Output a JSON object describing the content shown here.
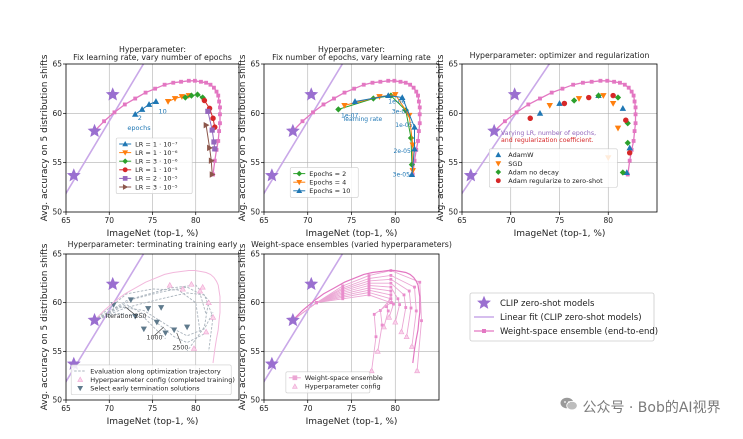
{
  "figure": {
    "ylabel": "Avg. accuracy on 5 distribution shifts",
    "xlabel": "ImageNet (top-1, %)",
    "watermark": "公众号 · Bob的AI视界"
  },
  "colors": {
    "clip": "#9a6fd0",
    "line": "#c9a8e8",
    "ensemble": "#e377c2",
    "blue": "#1f77b4",
    "orange": "#ff7f0e",
    "green": "#2ca02c",
    "red": "#d62728",
    "purple": "#9467bd",
    "brown": "#8c564b",
    "slate": "#5f7a8c",
    "grid": "#b0b0b0"
  },
  "chart_data": [
    {
      "id": "p1",
      "type": "line",
      "title": "Hyperparameter:\nFix learning rate, vary number of epochs",
      "xlim": [
        65,
        85
      ],
      "ylim": [
        50,
        65
      ],
      "xticks": [
        65,
        70,
        75,
        80
      ],
      "yticks": [
        50,
        55,
        60,
        65
      ],
      "annotations": [
        "2",
        "epochs",
        "10"
      ],
      "legend": [
        "LR = 1 · 10⁻⁷",
        "LR = 1 · 10⁻⁶",
        "LR = 3 · 10⁻⁶",
        "LR = 1 · 10⁻⁵",
        "LR = 2 · 10⁻⁵",
        "LR = 3 · 10⁻⁵"
      ],
      "series": [
        {
          "name": "LR = 1 · 10⁻⁷",
          "color": "blue",
          "marker": "triangle",
          "x": [
            73.0,
            73.8,
            74.6,
            75.4
          ],
          "y": [
            59.9,
            60.4,
            60.9,
            61.2
          ]
        },
        {
          "name": "LR = 1 · 10⁻⁶",
          "color": "orange",
          "marker": "tri-down",
          "x": [
            76.8,
            77.6,
            78.4,
            79.2
          ],
          "y": [
            61.2,
            61.5,
            61.7,
            61.8
          ]
        },
        {
          "name": "LR = 3 · 10⁻⁶",
          "color": "green",
          "marker": "diamond",
          "x": [
            78.8,
            79.5,
            80.2,
            80.8
          ],
          "y": [
            61.6,
            61.8,
            61.9,
            61.6
          ]
        },
        {
          "name": "LR = 1 · 10⁻⁵",
          "color": "red",
          "marker": "circle",
          "x": [
            81.0,
            81.6,
            82.0,
            82.2
          ],
          "y": [
            61.3,
            60.5,
            59.5,
            58.6
          ]
        },
        {
          "name": "LR = 2 · 10⁻⁵",
          "color": "purple",
          "marker": "square",
          "x": [
            81.4,
            81.9,
            82.1,
            82.2
          ],
          "y": [
            60.2,
            58.3,
            57.1,
            56.4
          ]
        },
        {
          "name": "LR = 3 · 10⁻⁵",
          "color": "brown",
          "marker": "tri-right",
          "x": [
            81.2,
            81.6,
            81.8,
            81.9
          ],
          "y": [
            58.8,
            56.5,
            55.2,
            53.8
          ]
        }
      ]
    },
    {
      "id": "p2",
      "type": "line",
      "title": "Hyperparameter:\nFix number of epochs, vary learning rate",
      "xlim": [
        65,
        85
      ],
      "ylim": [
        50,
        65
      ],
      "xticks": [
        65,
        70,
        75,
        80
      ],
      "yticks": [
        50,
        55,
        60,
        65
      ],
      "annotations": [
        "1e-07",
        "1e-06",
        "3e-06",
        "1e-05",
        "2e-05",
        "3e-05",
        "learning rate"
      ],
      "legend": [
        "Epochs = 2",
        "Epochs = 4",
        "Epochs = 10"
      ],
      "series": [
        {
          "name": "Epochs = 2",
          "color": "green",
          "marker": "diamond",
          "x": [
            73.5,
            77.5,
            79.5,
            81.2,
            81.8,
            81.9
          ],
          "y": [
            60.4,
            61.5,
            61.8,
            60.3,
            57.5,
            54.8
          ]
        },
        {
          "name": "Epochs = 4",
          "color": "orange",
          "marker": "tri-down",
          "x": [
            74.2,
            78.2,
            80.0,
            81.6,
            82.0,
            82.0
          ],
          "y": [
            60.8,
            61.7,
            61.9,
            59.8,
            56.8,
            54.2
          ]
        },
        {
          "name": "Epochs = 10",
          "color": "blue",
          "marker": "triangle",
          "x": [
            75.4,
            79.2,
            80.8,
            82.2,
            82.2,
            81.9
          ],
          "y": [
            61.2,
            61.8,
            61.6,
            58.6,
            56.4,
            53.8
          ]
        }
      ]
    },
    {
      "id": "p3",
      "type": "scatter",
      "title": "Hyperparameter: optimizer and regularization",
      "xlim": [
        65,
        85
      ],
      "ylim": [
        50,
        65
      ],
      "xticks": [
        65,
        70,
        75,
        80
      ],
      "yticks": [
        50,
        55,
        60,
        65
      ],
      "annotations": [
        "Varying LR, number of epochs,",
        "and regularization coefficient."
      ],
      "legend": [
        "AdamW",
        "SGD",
        "Adam no decay",
        "Adam regularize to zero-shot"
      ],
      "series": [
        {
          "name": "AdamW",
          "color": "blue",
          "marker": "triangle",
          "x": [
            73.0,
            75.0,
            79.0,
            81.5,
            82.2,
            81.9
          ],
          "y": [
            60.0,
            61.0,
            61.8,
            60.5,
            56.5,
            54.0
          ]
        },
        {
          "name": "SGD",
          "color": "orange",
          "marker": "tri-down",
          "x": [
            74.0,
            77.0,
            79.5,
            80.5,
            81.0,
            80.0
          ],
          "y": [
            60.8,
            61.5,
            61.8,
            61.0,
            58.5,
            55.5
          ]
        },
        {
          "name": "Adam no decay",
          "color": "green",
          "marker": "diamond",
          "x": [
            76.5,
            79.0,
            81.0,
            82.0,
            81.5,
            82.0
          ],
          "y": [
            61.3,
            61.8,
            61.6,
            59.0,
            54.0,
            57.0
          ]
        },
        {
          "name": "Adam regularize to zero-shot",
          "color": "red",
          "marker": "circle",
          "x": [
            72.0,
            75.5,
            78.0,
            80.5,
            81.8,
            82.2
          ],
          "y": [
            59.5,
            61.0,
            61.6,
            61.8,
            59.3,
            56.0
          ]
        }
      ]
    },
    {
      "id": "p4",
      "type": "line",
      "title": "Hyperparameter: terminating training early",
      "xlim": [
        65,
        85
      ],
      "ylim": [
        50,
        65
      ],
      "xticks": [
        65,
        70,
        75,
        80
      ],
      "yticks": [
        50,
        55,
        60,
        65
      ],
      "annotations": [
        "Iteration 250",
        "1000",
        "2500"
      ],
      "legend": [
        "Evaluation along optimization trajectory",
        "Hyperparameter config (completed training)",
        "Select early termination solutions"
      ],
      "series": []
    },
    {
      "id": "p5",
      "type": "line",
      "title": "Weight-space ensembles (varied hyperparameters)",
      "xlim": [
        65,
        85
      ],
      "ylim": [
        50,
        65
      ],
      "xticks": [
        65,
        70,
        75,
        80
      ],
      "yticks": [
        50,
        55,
        60,
        65
      ],
      "legend": [
        "Weight-space ensemble",
        "Hyperparameter config"
      ],
      "series": []
    }
  ],
  "shared": {
    "clip_zero_shot": {
      "name": "CLIP zero-shot models",
      "x": [
        65.9,
        68.3,
        70.4
      ],
      "y": [
        53.7,
        58.2,
        61.9
      ]
    },
    "linear_fit": {
      "name": "Linear fit (CLIP zero-shot models)",
      "x": [
        62,
        76
      ],
      "y": [
        47.5,
        68.0
      ]
    },
    "ensemble": {
      "name": "Weight-space ensemble (end-to-end)",
      "x": [
        68.3,
        69.4,
        70.6,
        71.8,
        73.0,
        74.2,
        75.3,
        76.4,
        77.4,
        78.3,
        79.2,
        79.9,
        80.6,
        81.2,
        81.7,
        82.1,
        82.4,
        82.6,
        82.7,
        82.8,
        82.8,
        82.8,
        82.7,
        82.6,
        82.4,
        82.2,
        82.0
      ],
      "y": [
        58.2,
        59.2,
        60.1,
        60.9,
        61.5,
        62.1,
        62.5,
        62.9,
        63.1,
        63.2,
        63.3,
        63.3,
        63.2,
        63.1,
        62.9,
        62.6,
        62.2,
        61.8,
        61.2,
        60.6,
        59.9,
        59.0,
        58.2,
        57.2,
        56.3,
        55.2,
        53.8
      ]
    }
  },
  "main_legend": [
    "CLIP zero-shot models",
    "Linear fit (CLIP zero-shot models)",
    "Weight-space ensemble (end-to-end)"
  ]
}
